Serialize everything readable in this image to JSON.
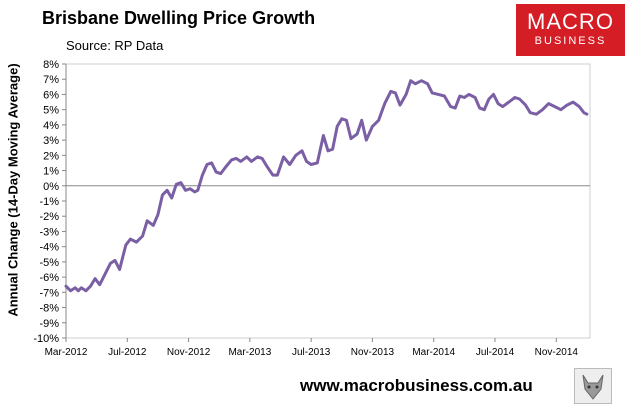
{
  "header": {
    "title": "Brisbane Dwelling Price Growth",
    "source": "Source: RP Data"
  },
  "logo": {
    "line1": "MACRO",
    "line2": "BUSINESS"
  },
  "footer": {
    "url": "www.macrobusiness.com.au"
  },
  "colors": {
    "line": "#7b5fa5",
    "axis": "#888888",
    "logo_bg": "#d41d24"
  },
  "chart_data": {
    "type": "line",
    "title": "Brisbane Dwelling Price Growth",
    "ylabel": "Annual Change (14-Day Moving Average)",
    "xlabel": "",
    "ylim": [
      -10,
      8
    ],
    "yticks": [
      -10,
      -9,
      -8,
      -7,
      -6,
      -5,
      -4,
      -3,
      -2,
      -1,
      0,
      1,
      2,
      3,
      4,
      5,
      6,
      7,
      8
    ],
    "ytick_labels": [
      "-10%",
      "-9%",
      "-8%",
      "-7%",
      "-6%",
      "-5%",
      "-4%",
      "-3%",
      "-2%",
      "-1%",
      "0%",
      "1%",
      "2%",
      "3%",
      "4%",
      "5%",
      "6%",
      "7%",
      "8%"
    ],
    "xlim": [
      0,
      34.2
    ],
    "xticks": [
      0,
      4,
      8,
      12,
      16,
      20,
      24,
      28,
      32
    ],
    "xtick_labels": [
      "Mar-2012",
      "Jul-2012",
      "Nov-2012",
      "Mar-2013",
      "Jul-2013",
      "Nov-2013",
      "Mar-2014",
      "Jul-2014",
      "Nov-2014"
    ],
    "x_unit": "months since Mar-2012",
    "series": [
      {
        "name": "Brisbane",
        "x": [
          0,
          0.3,
          0.6,
          0.8,
          1.0,
          1.3,
          1.6,
          1.9,
          2.2,
          2.5,
          2.9,
          3.2,
          3.5,
          3.9,
          4.2,
          4.6,
          5.0,
          5.3,
          5.7,
          6.0,
          6.3,
          6.6,
          6.9,
          7.2,
          7.5,
          7.8,
          8.1,
          8.4,
          8.6,
          8.9,
          9.2,
          9.5,
          9.8,
          10.1,
          10.4,
          10.8,
          11.1,
          11.4,
          11.8,
          12.1,
          12.5,
          12.8,
          13.1,
          13.5,
          13.8,
          14.2,
          14.6,
          15.0,
          15.4,
          15.7,
          16.0,
          16.4,
          16.8,
          17.1,
          17.4,
          17.7,
          18.0,
          18.3,
          18.6,
          19.0,
          19.3,
          19.6,
          20.0,
          20.4,
          20.8,
          21.2,
          21.5,
          21.8,
          22.2,
          22.5,
          22.8,
          23.2,
          23.6,
          23.9,
          24.3,
          24.7,
          25.1,
          25.4,
          25.7,
          26.0,
          26.3,
          26.7,
          27.0,
          27.3,
          27.6,
          27.9,
          28.2,
          28.5,
          28.9,
          29.3,
          29.6,
          30.0,
          30.3,
          30.7,
          31.1,
          31.5,
          31.9,
          32.3,
          32.7,
          33.1,
          33.5,
          33.8,
          34.0
        ],
        "y": [
          -6.6,
          -6.9,
          -6.7,
          -6.9,
          -6.7,
          -6.9,
          -6.6,
          -6.1,
          -6.5,
          -5.9,
          -5.1,
          -4.9,
          -5.5,
          -3.9,
          -3.5,
          -3.7,
          -3.3,
          -2.3,
          -2.6,
          -1.9,
          -0.6,
          -0.3,
          -0.8,
          0.1,
          0.2,
          -0.3,
          -0.2,
          -0.4,
          -0.3,
          0.7,
          1.4,
          1.5,
          0.9,
          0.8,
          1.2,
          1.7,
          1.8,
          1.6,
          1.9,
          1.6,
          1.9,
          1.8,
          1.3,
          0.7,
          0.7,
          1.9,
          1.4,
          2.0,
          2.3,
          1.6,
          1.4,
          1.5,
          3.3,
          2.3,
          2.4,
          3.9,
          4.4,
          4.3,
          3.1,
          3.4,
          4.3,
          3.0,
          3.9,
          4.3,
          5.4,
          6.2,
          6.1,
          5.3,
          6.0,
          6.9,
          6.7,
          6.9,
          6.7,
          6.1,
          6.0,
          5.9,
          5.2,
          5.1,
          5.9,
          5.8,
          6.0,
          5.8,
          5.1,
          5.0,
          5.7,
          6.0,
          5.4,
          5.2,
          5.5,
          5.8,
          5.7,
          5.3,
          4.8,
          4.7,
          5.0,
          5.4,
          5.2,
          5.0,
          5.3,
          5.5,
          5.2,
          4.8,
          4.7
        ]
      }
    ]
  }
}
